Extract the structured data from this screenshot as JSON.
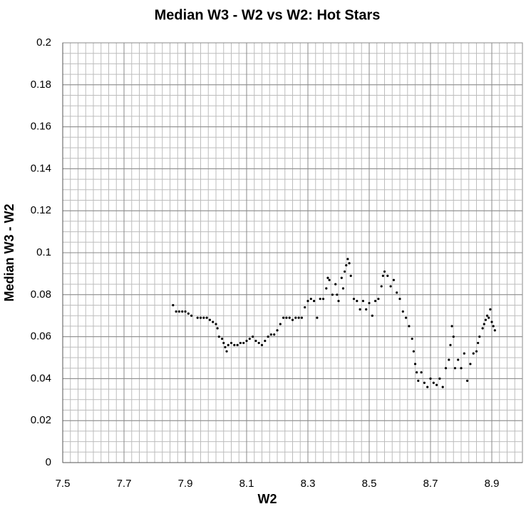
{
  "chart_data": {
    "type": "scatter",
    "title": "Median W3 - W2 vs W2: Hot Stars",
    "x_label": "W2",
    "y_label": "Median W3 - W2",
    "xlim": [
      7.5,
      9.0
    ],
    "ylim": [
      0,
      0.2
    ],
    "xticks": [
      7.5,
      7.7,
      7.9,
      8.1,
      8.3,
      8.5,
      8.7,
      8.9
    ],
    "yticks": [
      0,
      0.02,
      0.04,
      0.06,
      0.08,
      0.1,
      0.12,
      0.14,
      0.16,
      0.18,
      0.2
    ],
    "grid": true,
    "x_minor_divisions": 8,
    "y_minor_divisions": 4,
    "color": "#000000",
    "series": [
      {
        "name": "Median W3 - W2",
        "color": "#000000",
        "x": [
          7.86,
          7.87,
          7.88,
          7.89,
          7.9,
          7.91,
          7.92,
          7.94,
          7.95,
          7.96,
          7.97,
          7.98,
          7.99,
          8.0,
          8.005,
          8.01,
          8.02,
          8.025,
          8.03,
          8.035,
          8.04,
          8.05,
          8.06,
          8.07,
          8.08,
          8.09,
          8.1,
          8.11,
          8.12,
          8.13,
          8.14,
          8.15,
          8.16,
          8.17,
          8.18,
          8.19,
          8.2,
          8.21,
          8.22,
          8.23,
          8.24,
          8.25,
          8.26,
          8.27,
          8.28,
          8.29,
          8.3,
          8.31,
          8.32,
          8.33,
          8.34,
          8.35,
          8.36,
          8.365,
          8.37,
          8.38,
          8.39,
          8.395,
          8.4,
          8.41,
          8.415,
          8.42,
          8.425,
          8.43,
          8.435,
          8.44,
          8.45,
          8.46,
          8.47,
          8.48,
          8.49,
          8.5,
          8.51,
          8.52,
          8.53,
          8.54,
          8.545,
          8.55,
          8.56,
          8.57,
          8.58,
          8.59,
          8.6,
          8.61,
          8.62,
          8.63,
          8.64,
          8.645,
          8.65,
          8.655,
          8.66,
          8.67,
          8.68,
          8.69,
          8.7,
          8.71,
          8.72,
          8.73,
          8.74,
          8.75,
          8.76,
          8.765,
          8.77,
          8.775,
          8.78,
          8.79,
          8.8,
          8.81,
          8.82,
          8.83,
          8.84,
          8.85,
          8.855,
          8.86,
          8.87,
          8.875,
          8.88,
          8.885,
          8.89,
          8.895,
          8.9,
          8.905,
          8.91
        ],
        "values": [
          0.075,
          0.072,
          0.072,
          0.072,
          0.072,
          0.071,
          0.07,
          0.069,
          0.069,
          0.069,
          0.069,
          0.068,
          0.067,
          0.066,
          0.064,
          0.06,
          0.059,
          0.057,
          0.055,
          0.053,
          0.056,
          0.057,
          0.056,
          0.056,
          0.057,
          0.057,
          0.058,
          0.059,
          0.06,
          0.058,
          0.057,
          0.056,
          0.058,
          0.06,
          0.061,
          0.061,
          0.063,
          0.066,
          0.069,
          0.069,
          0.069,
          0.068,
          0.069,
          0.069,
          0.069,
          0.074,
          0.077,
          0.078,
          0.077,
          0.069,
          0.078,
          0.078,
          0.083,
          0.088,
          0.087,
          0.08,
          0.085,
          0.08,
          0.077,
          0.088,
          0.083,
          0.091,
          0.094,
          0.097,
          0.095,
          0.089,
          0.078,
          0.077,
          0.073,
          0.077,
          0.073,
          0.076,
          0.07,
          0.077,
          0.078,
          0.084,
          0.089,
          0.091,
          0.089,
          0.084,
          0.087,
          0.081,
          0.078,
          0.072,
          0.069,
          0.065,
          0.059,
          0.053,
          0.047,
          0.043,
          0.039,
          0.043,
          0.038,
          0.036,
          0.04,
          0.038,
          0.037,
          0.04,
          0.036,
          0.045,
          0.049,
          0.056,
          0.065,
          0.06,
          0.045,
          0.049,
          0.045,
          0.052,
          0.039,
          0.047,
          0.052,
          0.053,
          0.057,
          0.06,
          0.064,
          0.066,
          0.068,
          0.07,
          0.069,
          0.073,
          0.067,
          0.065,
          0.063
        ]
      }
    ]
  }
}
